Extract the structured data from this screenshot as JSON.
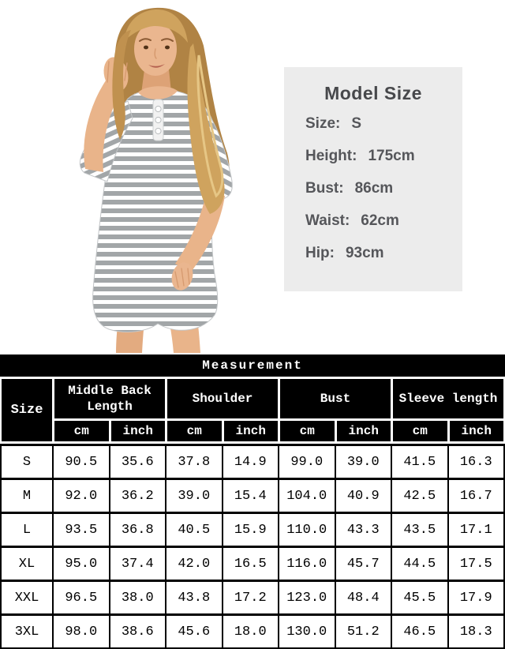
{
  "photo": {
    "description": "model wearing grey and white striped 3/4-sleeve button nightshirt"
  },
  "model_size": {
    "title": "Model Size",
    "rows": [
      {
        "label": "Size:",
        "value": "S"
      },
      {
        "label": "Height:",
        "value": "175cm"
      },
      {
        "label": "Bust:",
        "value": "86cm"
      },
      {
        "label": "Waist:",
        "value": "62cm"
      },
      {
        "label": "Hip:",
        "value": "93cm"
      }
    ]
  },
  "measurement_table": {
    "title": "Measurement",
    "size_header": "Size",
    "groups": [
      {
        "label": "Middle Back Length"
      },
      {
        "label": "Shoulder"
      },
      {
        "label": "Bust"
      },
      {
        "label": "Sleeve length"
      }
    ],
    "units": [
      "cm",
      "inch"
    ],
    "rows": [
      {
        "size": "S",
        "values": [
          "90.5",
          "35.6",
          "37.8",
          "14.9",
          "99.0",
          "39.0",
          "41.5",
          "16.3"
        ]
      },
      {
        "size": "M",
        "values": [
          "92.0",
          "36.2",
          "39.0",
          "15.4",
          "104.0",
          "40.9",
          "42.5",
          "16.7"
        ]
      },
      {
        "size": "L",
        "values": [
          "93.5",
          "36.8",
          "40.5",
          "15.9",
          "110.0",
          "43.3",
          "43.5",
          "17.1"
        ]
      },
      {
        "size": "XL",
        "values": [
          "95.0",
          "37.4",
          "42.0",
          "16.5",
          "116.0",
          "45.7",
          "44.5",
          "17.5"
        ]
      },
      {
        "size": "XXL",
        "values": [
          "96.5",
          "38.0",
          "43.8",
          "17.2",
          "123.0",
          "48.4",
          "45.5",
          "17.9"
        ]
      },
      {
        "size": "3XL",
        "values": [
          "98.0",
          "38.6",
          "45.6",
          "18.0",
          "130.0",
          "51.2",
          "46.5",
          "18.3"
        ]
      }
    ]
  },
  "colors": {
    "page_bg": "#ffffff",
    "info_box_bg": "#ececec",
    "info_box_text": "#55565a",
    "table_header_bg": "#000000",
    "table_header_text": "#ffffff",
    "table_body_bg": "#ffffff",
    "table_body_text": "#000000",
    "dress_stripe_grey": "#a2a6a8",
    "dress_stripe_white": "#ffffff",
    "hair": "#c0914f",
    "skin": "#e8b48d"
  }
}
